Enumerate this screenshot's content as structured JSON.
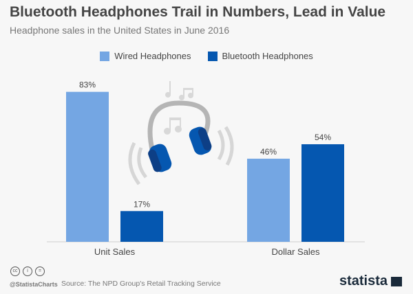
{
  "chart_data": {
    "type": "bar",
    "title": "Bluetooth Headphones Trail in Numbers, Lead in Value",
    "subtitle": "Headphone sales in the United States in June 2016",
    "categories": [
      "Unit Sales",
      "Dollar Sales"
    ],
    "series": [
      {
        "name": "Wired Headphones",
        "values": [
          83,
          46
        ],
        "labels": [
          "83%",
          "46%"
        ],
        "color": "#74a6e3"
      },
      {
        "name": "Bluetooth Headphones",
        "values": [
          17,
          54
        ],
        "labels": [
          "17%",
          "54%"
        ],
        "color": "#0557b0"
      }
    ],
    "ylim": [
      0,
      100
    ],
    "legend": "top-center",
    "grid": false
  },
  "footer": {
    "handle": "@StatistaCharts",
    "source": "Source: The NPD Group's Retail Tracking Service",
    "logo": "statista",
    "cc": [
      "cc",
      "i",
      "="
    ]
  }
}
